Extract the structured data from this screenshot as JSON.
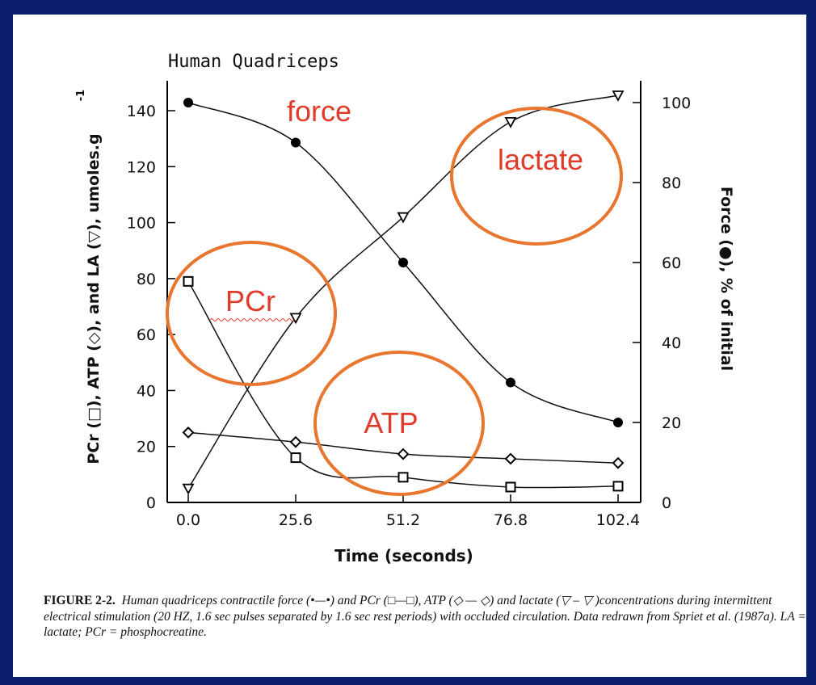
{
  "chart_data": {
    "type": "line",
    "title": "Human Quadriceps",
    "xlabel": "Time (seconds)",
    "ylabel_left": "PCr (□), ATP (◇), and LA (▽), umoles.g",
    "ylabel_left_superscript": "-1",
    "ylabel_right": "Force (●), % of initial",
    "x": [
      0.0,
      25.6,
      51.2,
      76.8,
      102.4
    ],
    "x_tick_labels": [
      "0.0",
      "25.6",
      "51.2",
      "76.8",
      "102.4"
    ],
    "ylim_left": [
      0,
      150
    ],
    "y_ticks_left": [
      0,
      20,
      40,
      60,
      80,
      100,
      120,
      140
    ],
    "ylim_right": [
      0,
      104
    ],
    "y_ticks_right": [
      0,
      20,
      40,
      60,
      80,
      100
    ],
    "grid": false,
    "series": [
      {
        "name": "force",
        "axis": "right",
        "marker": "filled-circle",
        "values": [
          100,
          90,
          60,
          30,
          20
        ]
      },
      {
        "name": "PCr",
        "axis": "left",
        "marker": "open-square",
        "values": [
          79,
          16,
          9,
          5.5,
          5.8
        ]
      },
      {
        "name": "ATP",
        "axis": "left",
        "marker": "open-diamond",
        "values": [
          25,
          21.6,
          17.3,
          15.6,
          14.1
        ]
      },
      {
        "name": "LA",
        "axis": "left",
        "marker": "open-triangle-down",
        "values": [
          5,
          66,
          102,
          136,
          145.5
        ]
      }
    ],
    "annotations": [
      {
        "text": "force",
        "color": "#e03a2a"
      },
      {
        "text": "lactate",
        "color": "#e03a2a",
        "circled": true
      },
      {
        "text": "PCr",
        "color": "#e03a2a",
        "circled": true
      },
      {
        "text": "ATP",
        "color": "#e03a2a",
        "circled": true
      }
    ],
    "circle_color": "#e8762e"
  },
  "caption": {
    "label": "FIGURE 2-2.",
    "text": "Human quadriceps contractile force (•—•) and PCr (□—□), ATP (◇ — ◇) and lactate (▽ – ▽ )concentrations during intermittent electrical stimulation (20 HZ, 1.6 sec pulses separated by 1.6 sec rest periods) with occluded circulation. Data redrawn from Spriet et al. (1987a). LA = lactate; PCr = phosphocreatine."
  },
  "colors": {
    "slide_background": "#0b1f6e",
    "panel": "#ffffff"
  }
}
